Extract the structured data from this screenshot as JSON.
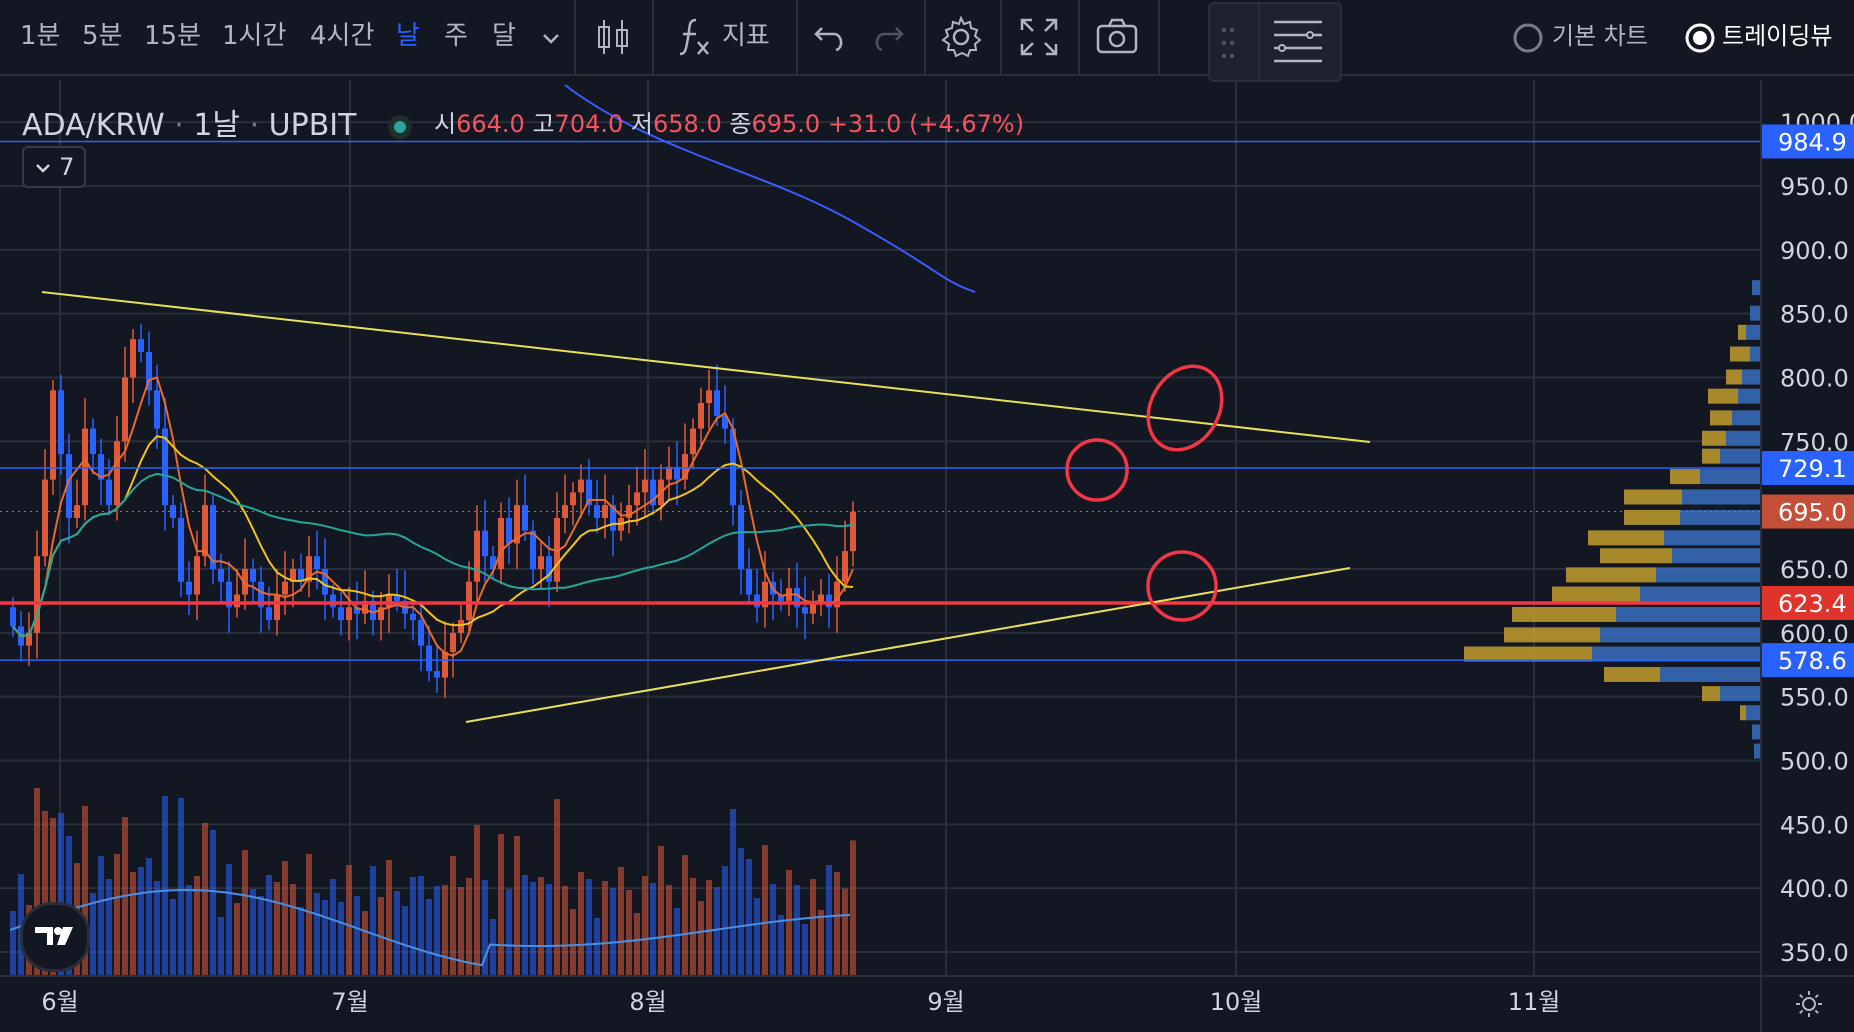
{
  "toolbar": {
    "intervals": [
      "1분",
      "5분",
      "15분",
      "1시간",
      "4시간",
      "날",
      "주",
      "달"
    ],
    "active_interval": "날",
    "indicators_label": "지표",
    "basic_chart_label": "기본 차트",
    "tradingview_label": "트레이딩뷰"
  },
  "legend": {
    "symbol": "ADA/KRW",
    "interval": "1날",
    "exchange": "UPBIT",
    "open_label": "시",
    "open": "664.0",
    "high_label": "고",
    "high": "704.0",
    "low_label": "저",
    "low": "658.0",
    "close_label": "종",
    "close": "695.0",
    "change": "+31.0 (+4.67%)",
    "indicator_count": "7"
  },
  "price_axis": {
    "ticks": [
      "1000.0",
      "950.0",
      "900.0",
      "850.0",
      "800.0",
      "750.0",
      "650.0",
      "600.0",
      "550.0",
      "500.0",
      "450.0",
      "400.0",
      "350.0"
    ],
    "labels": [
      {
        "value": "984.9",
        "color": "#2962ff"
      },
      {
        "value": "729.1",
        "color": "#2962ff"
      },
      {
        "value": "695.0",
        "color": "#c4503a"
      },
      {
        "value": "623.4",
        "color": "#e0332c"
      },
      {
        "value": "578.6",
        "color": "#2962ff"
      }
    ]
  },
  "time_axis": {
    "ticks": [
      "6월",
      "7월",
      "8월",
      "9월",
      "10월",
      "11월"
    ]
  },
  "colors": {
    "up": "#e05a3a",
    "down": "#2962ff",
    "background": "#131722",
    "hline_blue": "#2962ff",
    "hline_red": "#f23645",
    "trendline": "#e8e05a",
    "ma_orange": "#e86a2c",
    "ma_yellow": "#f0c419",
    "ma_teal": "#26a69a",
    "ma_blue": "#3a5cff"
  },
  "icons": [
    "candles-icon",
    "fx-icon",
    "undo-icon",
    "redo-icon",
    "gear-icon",
    "fullscreen-icon",
    "camera-icon",
    "layout-icon",
    "settings-icon",
    "tradingview-logo"
  ]
}
